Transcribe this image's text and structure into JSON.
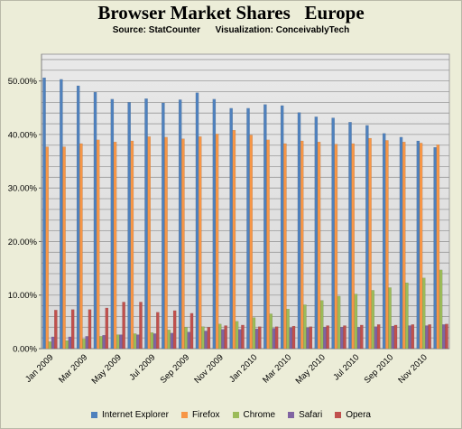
{
  "chart_data": {
    "type": "bar",
    "title": "Browser Market Shares   Europe",
    "subtitle": "Source: StatCounter      Visualization: ConceivablyTech",
    "ylim": [
      0,
      55
    ],
    "yticks": [
      0,
      10,
      20,
      30,
      40,
      50
    ],
    "ytick_labels": [
      "0.00%",
      "10.00%",
      "20.00%",
      "30.00%",
      "40.00%",
      "50.00%"
    ],
    "grid": true,
    "legend_position": "bottom",
    "categories": [
      "Jan 2009",
      "Feb 2009",
      "Mar 2009",
      "Apr 2009",
      "May 2009",
      "Jun 2009",
      "Jul 2009",
      "Aug 2009",
      "Sep 2009",
      "Oct 2009",
      "Nov 2009",
      "Dec 2009",
      "Jan 2010",
      "Feb 2010",
      "Mar 2010",
      "Apr 2010",
      "May 2010",
      "Jun 2010",
      "Jul 2010",
      "Aug 2010",
      "Sep 2010",
      "Oct 2010",
      "Nov 2010",
      "Dec 2010"
    ],
    "x_tick_labels": [
      "Jan 2009",
      "",
      "Mar 2009",
      "",
      "May 2009",
      "",
      "Jul 2009",
      "",
      "Sep 2009",
      "",
      "Nov 2009",
      "",
      "Jan 2010",
      "",
      "Mar 2010",
      "",
      "May 2010",
      "",
      "Jul 2010",
      "",
      "Sep 2010",
      "",
      "Nov 2010",
      ""
    ],
    "series": [
      {
        "name": "Internet Explorer",
        "color": "#4f81bd",
        "values": [
          50.6,
          50.3,
          49.1,
          47.9,
          46.6,
          46.0,
          46.7,
          45.9,
          46.5,
          47.8,
          46.6,
          44.9,
          44.9,
          45.6,
          45.4,
          44.1,
          43.3,
          43.1,
          42.3,
          41.7,
          40.2,
          39.5,
          38.8,
          37.6
        ]
      },
      {
        "name": "Firefox",
        "color": "#f79646",
        "values": [
          37.7,
          37.7,
          38.3,
          39.0,
          38.6,
          38.8,
          39.6,
          39.5,
          39.2,
          39.6,
          40.1,
          40.8,
          39.9,
          39.0,
          38.3,
          38.8,
          38.6,
          38.2,
          38.3,
          39.3,
          38.9,
          38.6,
          38.4,
          38.1
        ]
      },
      {
        "name": "Chrome",
        "color": "#9bbb59",
        "values": [
          1.3,
          1.5,
          1.8,
          2.3,
          2.6,
          2.8,
          3.0,
          3.5,
          4.0,
          4.1,
          4.6,
          5.1,
          5.8,
          6.5,
          7.4,
          8.2,
          9.0,
          9.8,
          10.2,
          10.9,
          11.4,
          12.3,
          13.2,
          14.7
        ]
      },
      {
        "name": "Safari",
        "color": "#8064a2",
        "values": [
          2.2,
          2.2,
          2.3,
          2.5,
          2.6,
          2.6,
          2.8,
          2.9,
          3.1,
          3.3,
          3.6,
          3.6,
          3.7,
          3.8,
          3.9,
          3.9,
          4.0,
          4.0,
          4.0,
          4.1,
          4.2,
          4.3,
          4.3,
          4.5
        ]
      },
      {
        "name": "Opera",
        "color": "#c0504d",
        "values": [
          7.2,
          7.3,
          7.3,
          7.6,
          8.7,
          8.7,
          6.8,
          7.1,
          6.6,
          4.0,
          4.3,
          4.4,
          4.1,
          4.1,
          4.2,
          4.1,
          4.3,
          4.3,
          4.4,
          4.5,
          4.4,
          4.5,
          4.5,
          4.6
        ]
      }
    ]
  }
}
